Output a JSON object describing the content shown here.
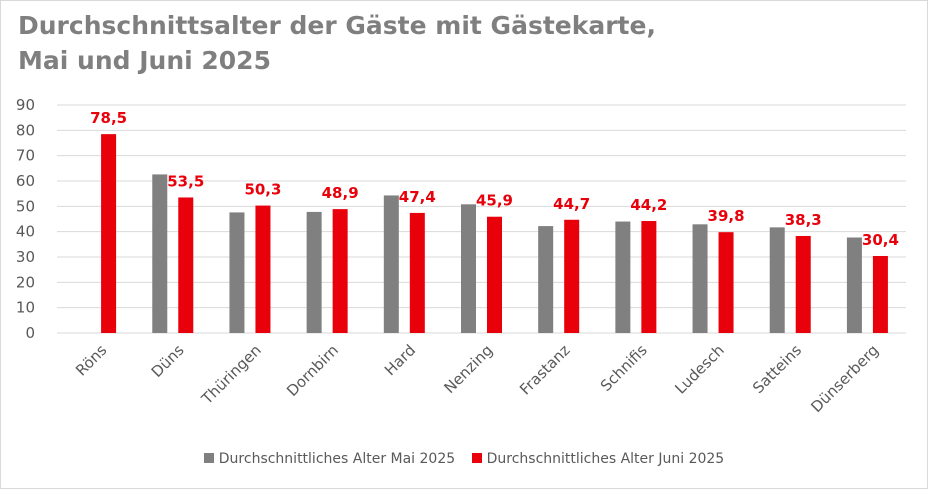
{
  "chart_data": {
    "type": "bar",
    "title_line1": "Durchschnittsalter der Gäste mit Gästekarte,",
    "title_line2": "Mai und Juni 2025",
    "xlabel": "",
    "ylabel": "",
    "ylim": [
      0,
      90
    ],
    "yticks": [
      0,
      10,
      20,
      30,
      40,
      50,
      60,
      70,
      80,
      90
    ],
    "grid": true,
    "legend_position": "bottom",
    "categories": [
      "Röns",
      "Düns",
      "Thüringen",
      "Dornbirn",
      "Hard",
      "Nenzing",
      "Frastanz",
      "Schnifis",
      "Ludesch",
      "Satteins",
      "Dünserberg"
    ],
    "series": [
      {
        "name": "Durchschnittliches Alter Mai 2025",
        "color": "#808080",
        "values": [
          null,
          62.6,
          47.6,
          47.8,
          54.3,
          50.8,
          42.2,
          44.0,
          42.9,
          41.7,
          37.7
        ],
        "labels": []
      },
      {
        "name": "Durchschnittliches Alter Juni 2025",
        "color": "#e8000b",
        "values": [
          78.5,
          53.5,
          50.3,
          48.9,
          47.4,
          45.9,
          44.7,
          44.2,
          39.8,
          38.3,
          30.4
        ],
        "labels": [
          "78,5",
          "53,5",
          "50,3",
          "48,9",
          "47,4",
          "45,9",
          "44,7",
          "44,2",
          "39,8",
          "38,3",
          "30,4"
        ]
      }
    ],
    "grid_color": "#d9d9d9",
    "axis_text_color": "#595959",
    "title_color": "#7f7f7f"
  }
}
